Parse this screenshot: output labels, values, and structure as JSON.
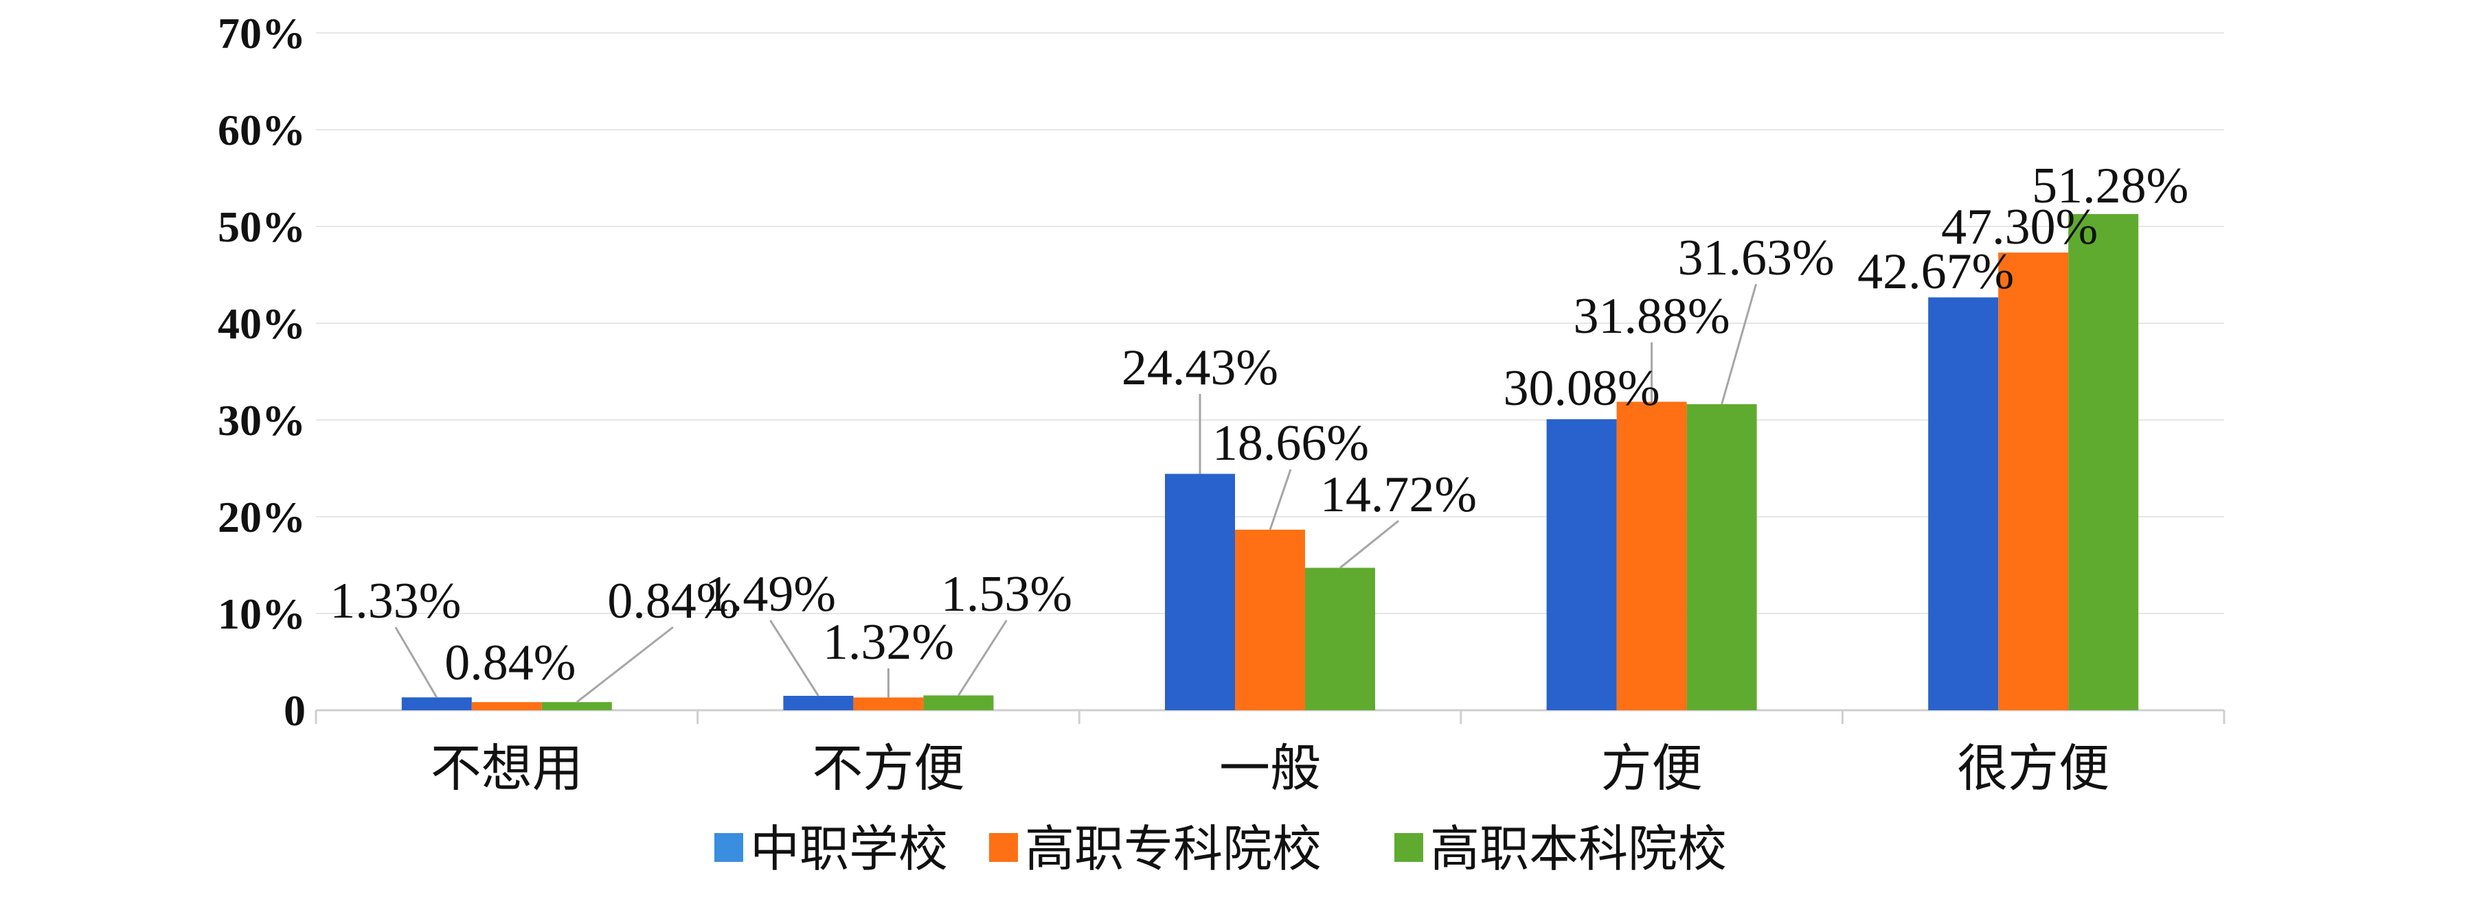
{
  "chart_data": {
    "type": "bar",
    "categories": [
      "不想用",
      "不方便",
      "一般",
      "方便",
      "很方便"
    ],
    "y_ticks": [
      "0",
      "10%",
      "20%",
      "30%",
      "40%",
      "50%",
      "60%",
      "70%"
    ],
    "ylim": [
      0,
      70
    ],
    "grid": true,
    "legend_position": "bottom",
    "series": [
      {
        "name": "中职学校",
        "color": "#2962CC",
        "values": [
          1.33,
          1.49,
          24.43,
          30.08,
          42.67
        ],
        "labels": [
          "1.33%",
          "1.49%",
          "24.43%",
          "30.08%",
          "42.67%"
        ]
      },
      {
        "name": "高职专科院校",
        "color": "#FF7014",
        "values": [
          0.84,
          1.32,
          18.66,
          31.88,
          47.3
        ],
        "labels": [
          "0.84%",
          "1.32%",
          "18.66%",
          "31.88%",
          "47.30%"
        ]
      },
      {
        "name": "高职本科院校",
        "color": "#5FAB2F",
        "values": [
          0.84,
          1.53,
          14.72,
          31.63,
          51.28
        ],
        "labels": [
          "0.84%",
          "1.53%",
          "14.72%",
          "31.63%",
          "51.28%"
        ]
      }
    ],
    "legend_marker_colors": [
      "#3A8EE0",
      "#FF7014",
      "#5FAB2F"
    ]
  }
}
